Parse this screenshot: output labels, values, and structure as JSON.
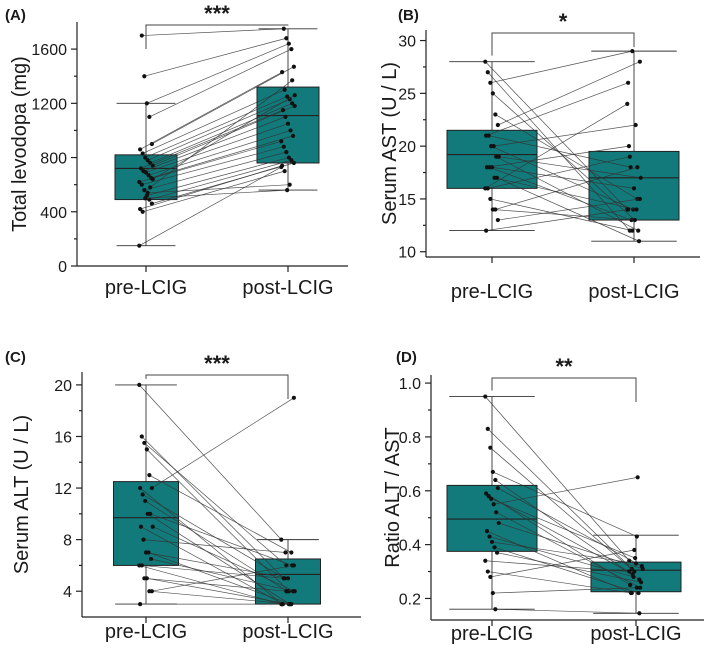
{
  "colors": {
    "box_fill": "#127a7a",
    "axis": "#222222",
    "line": "#333333",
    "point": "#111111"
  },
  "chart_data": [
    {
      "panel_label": "(A)",
      "type": "box",
      "categories": [
        "pre-LCIG",
        "post-LCIG"
      ],
      "ylabel": "Total levodopa (mg)",
      "xlabel": "",
      "ylim": [
        0,
        1800
      ],
      "yticks": [
        0,
        400,
        800,
        1200,
        1600
      ],
      "significance": "***",
      "boxes": [
        {
          "category": "pre-LCIG",
          "q1": 490,
          "median": 720,
          "q3": 820,
          "whisker_low": 150,
          "whisker_high": 1200
        },
        {
          "category": "post-LCIG",
          "q1": 760,
          "median": 1110,
          "q3": 1320,
          "whisker_low": 560,
          "whisker_high": 1750
        }
      ],
      "pairs": [
        [
          150,
          730
        ],
        [
          1700,
          1750
        ],
        [
          1400,
          1680
        ],
        [
          1200,
          1640
        ],
        [
          1100,
          1600
        ],
        [
          900,
          1470
        ],
        [
          860,
          1430
        ],
        [
          830,
          1300
        ],
        [
          800,
          1250
        ],
        [
          780,
          1230
        ],
        [
          760,
          1200
        ],
        [
          740,
          1180
        ],
        [
          720,
          1150
        ],
        [
          700,
          1100
        ],
        [
          690,
          1050
        ],
        [
          670,
          1000
        ],
        [
          650,
          960
        ],
        [
          620,
          920
        ],
        [
          600,
          880
        ],
        [
          560,
          840
        ],
        [
          520,
          800
        ],
        [
          490,
          780
        ],
        [
          460,
          760
        ],
        [
          420,
          740
        ],
        [
          400,
          700
        ],
        [
          500,
          560
        ],
        [
          540,
          600
        ],
        [
          580,
          1370
        ],
        [
          640,
          1260
        ]
      ]
    },
    {
      "panel_label": "(B)",
      "type": "box",
      "categories": [
        "pre-LCIG",
        "post-LCIG"
      ],
      "ylabel": "Serum AST (U / L)",
      "xlabel": "",
      "ylim": [
        9.5,
        31
      ],
      "yticks": [
        10,
        15,
        20,
        25,
        30
      ],
      "significance": "*",
      "boxes": [
        {
          "category": "pre-LCIG",
          "q1": 16,
          "median": 19.2,
          "q3": 21.5,
          "whisker_low": 12,
          "whisker_high": 28
        },
        {
          "category": "post-LCIG",
          "q1": 13,
          "median": 17,
          "q3": 19.5,
          "whisker_low": 11,
          "whisker_high": 29
        }
      ],
      "pairs": [
        [
          28,
          14
        ],
        [
          27,
          12
        ],
        [
          26,
          29
        ],
        [
          25,
          13
        ],
        [
          23,
          15
        ],
        [
          22,
          28
        ],
        [
          21,
          26
        ],
        [
          21,
          18
        ],
        [
          20,
          14
        ],
        [
          20,
          22
        ],
        [
          19,
          12
        ],
        [
          19,
          17
        ],
        [
          18,
          20
        ],
        [
          18,
          13
        ],
        [
          18,
          16
        ],
        [
          17,
          14
        ],
        [
          17,
          11
        ],
        [
          16,
          24
        ],
        [
          16,
          19
        ],
        [
          15,
          12
        ],
        [
          14,
          13
        ],
        [
          14,
          18
        ],
        [
          13,
          15
        ],
        [
          12,
          14
        ]
      ]
    },
    {
      "panel_label": "(C)",
      "type": "box",
      "categories": [
        "pre-LCIG",
        "post-LCIG"
      ],
      "ylabel": "Serum ALT (U / L)",
      "xlabel": "",
      "ylim": [
        2,
        21
      ],
      "yticks": [
        4,
        8,
        12,
        16,
        20
      ],
      "significance": "***",
      "boxes": [
        {
          "category": "pre-LCIG",
          "q1": 6,
          "median": 9.7,
          "q3": 12.5,
          "whisker_low": 3,
          "whisker_high": 20
        },
        {
          "category": "post-LCIG",
          "q1": 3,
          "median": 5.3,
          "q3": 6.5,
          "whisker_low": 3,
          "whisker_high": 8
        }
      ],
      "pairs": [
        [
          20,
          8
        ],
        [
          16,
          5
        ],
        [
          15.5,
          6
        ],
        [
          15,
          4
        ],
        [
          13,
          7
        ],
        [
          12,
          19
        ],
        [
          12,
          3
        ],
        [
          11.5,
          5
        ],
        [
          11,
          4
        ],
        [
          10,
          3
        ],
        [
          10,
          6
        ],
        [
          9,
          4
        ],
        [
          9,
          3
        ],
        [
          8,
          7
        ],
        [
          7,
          5
        ],
        [
          7,
          3
        ],
        [
          6.5,
          4
        ],
        [
          6,
          3
        ],
        [
          6,
          5
        ],
        [
          5,
          4
        ],
        [
          5,
          3
        ],
        [
          4,
          3
        ],
        [
          4,
          6
        ],
        [
          3,
          3
        ]
      ]
    },
    {
      "panel_label": "(D)",
      "type": "box",
      "categories": [
        "pre-LCIG",
        "post-LCIG"
      ],
      "ylabel": "Ratio ALT / AST",
      "xlabel": "",
      "ylim": [
        0.12,
        1.03
      ],
      "yticks": [
        0.2,
        0.4,
        0.6,
        0.8,
        1.0
      ],
      "ytick_labels": [
        "0.2",
        "0.4",
        "0.6",
        "0.8",
        "1.0"
      ],
      "significance": "**",
      "boxes": [
        {
          "category": "pre-LCIG",
          "q1": 0.375,
          "median": 0.495,
          "q3": 0.62,
          "whisker_low": 0.16,
          "whisker_high": 0.95
        },
        {
          "category": "post-LCIG",
          "q1": 0.225,
          "median": 0.305,
          "q3": 0.335,
          "whisker_low": 0.145,
          "whisker_high": 0.435
        }
      ],
      "pairs": [
        [
          0.95,
          0.34
        ],
        [
          0.83,
          0.31
        ],
        [
          0.76,
          0.3
        ],
        [
          0.67,
          0.43
        ],
        [
          0.64,
          0.27
        ],
        [
          0.61,
          0.32
        ],
        [
          0.59,
          0.25
        ],
        [
          0.58,
          0.29
        ],
        [
          0.57,
          0.35
        ],
        [
          0.55,
          0.65
        ],
        [
          0.52,
          0.24
        ],
        [
          0.48,
          0.31
        ],
        [
          0.45,
          0.22
        ],
        [
          0.43,
          0.28
        ],
        [
          0.41,
          0.33
        ],
        [
          0.39,
          0.22
        ],
        [
          0.37,
          0.26
        ],
        [
          0.34,
          0.3
        ],
        [
          0.3,
          0.22
        ],
        [
          0.28,
          0.38
        ],
        [
          0.22,
          0.24
        ],
        [
          0.16,
          0.145
        ]
      ]
    }
  ]
}
